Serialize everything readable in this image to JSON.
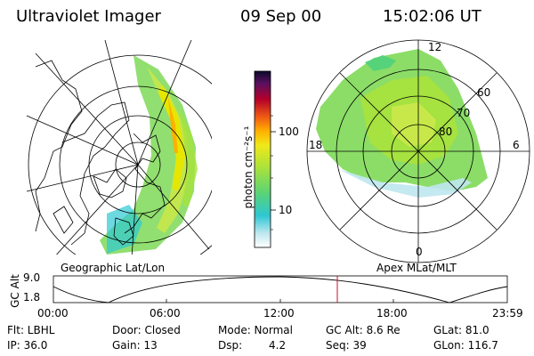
{
  "header": {
    "title": "Ultraviolet Imager",
    "date": "09 Sep 00",
    "time": "15:02:06 UT"
  },
  "left_panel": {
    "label": "Geographic Lat/Lon"
  },
  "right_panel": {
    "label": "Apex MLat/MLT",
    "mlt_labels": {
      "top": "12",
      "left": "18",
      "right": "6",
      "bottom": "0"
    },
    "lat_labels": [
      "60",
      "70",
      "80"
    ]
  },
  "colorbar": {
    "unit_label": "photon cm⁻²s⁻¹",
    "ticks": [
      "100",
      "10"
    ]
  },
  "timeline": {
    "axis_label": "GC Alt",
    "y_max": "9.0",
    "y_min": "1.8",
    "ticks": [
      "00:00",
      "06:00",
      "12:00",
      "18:00",
      "23:59"
    ],
    "marker_time": "15:02"
  },
  "info": {
    "flt": "Flt: LBHL",
    "ip": "IP: 36.0",
    "door": "Door: Closed",
    "gain": "Gain: 13",
    "mode": "Mode: Normal",
    "dsp_label": "Dsp:",
    "dsp_value": "4.2",
    "gc_alt": "GC Alt: 8.6 Re",
    "seq": "Seq: 39",
    "glat": "GLat:  81.0",
    "glon": "GLon: 116.7"
  },
  "colors": {
    "marker": "#c8102e",
    "aurora_green": "#7ed957",
    "aurora_yellow": "#e6e600"
  }
}
